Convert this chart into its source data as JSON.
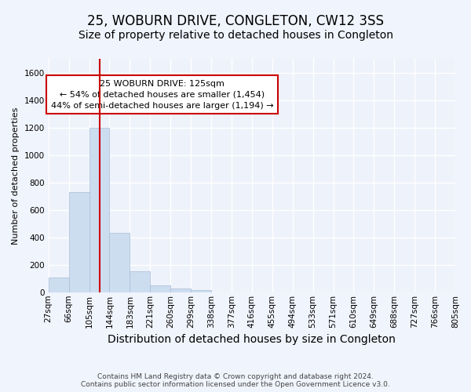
{
  "title": "25, WOBURN DRIVE, CONGLETON, CW12 3SS",
  "subtitle": "Size of property relative to detached houses in Congleton",
  "xlabel": "Distribution of detached houses by size in Congleton",
  "ylabel": "Number of detached properties",
  "bar_color": "#ccddf0",
  "bar_edge_color": "#aabbd8",
  "bar_values": [
    105,
    730,
    1200,
    430,
    150,
    50,
    25,
    15,
    0,
    0,
    0,
    0,
    0,
    0,
    0,
    0,
    0,
    0,
    0,
    0
  ],
  "bin_labels": [
    "27sqm",
    "66sqm",
    "105sqm",
    "144sqm",
    "183sqm",
    "221sqm",
    "260sqm",
    "299sqm",
    "338sqm",
    "377sqm",
    "416sqm",
    "455sqm",
    "494sqm",
    "533sqm",
    "571sqm",
    "610sqm",
    "649sqm",
    "688sqm",
    "727sqm",
    "766sqm",
    "805sqm"
  ],
  "ylim": [
    0,
    1700
  ],
  "yticks": [
    0,
    200,
    400,
    600,
    800,
    1000,
    1200,
    1400,
    1600
  ],
  "vline_x_idx": 2.5,
  "vline_color": "#cc0000",
  "annotation_text": "25 WOBURN DRIVE: 125sqm\n← 54% of detached houses are smaller (1,454)\n44% of semi-detached houses are larger (1,194) →",
  "annotation_box_color": "#ffffff",
  "annotation_box_edge_color": "#cc0000",
  "footer_line1": "Contains HM Land Registry data © Crown copyright and database right 2024.",
  "footer_line2": "Contains public sector information licensed under the Open Government Licence v3.0.",
  "background_color": "#f0f4fc",
  "plot_background": "#eef2fa",
  "grid_color": "#ffffff",
  "title_fontsize": 12,
  "subtitle_fontsize": 10,
  "xlabel_fontsize": 10,
  "ylabel_fontsize": 8,
  "tick_fontsize": 7.5,
  "annotation_fontsize": 8,
  "footer_fontsize": 6.5
}
